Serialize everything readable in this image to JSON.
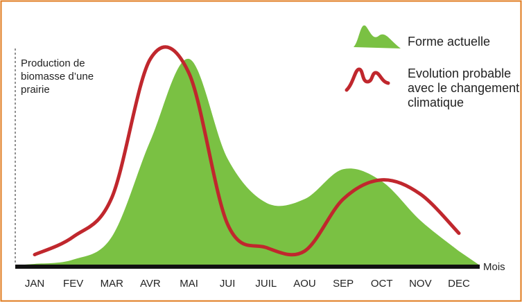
{
  "chart_data": {
    "type": "area-line",
    "y_label": "Production de biomasse d’une prairie",
    "x_label": "Mois",
    "categories": [
      "JAN",
      "FEV",
      "MAR",
      "AVR",
      "MAI",
      "JUI",
      "JUIL",
      "AOU",
      "SEP",
      "OCT",
      "NOV",
      "DEC"
    ],
    "series": [
      {
        "name": "Forme actuelle",
        "color": "#7ac143",
        "kind": "area",
        "values": [
          2,
          8,
          40,
          175,
          290,
          150,
          88,
          93,
          135,
          118,
          63,
          20
        ]
      },
      {
        "name": "Evolution probable avec le changement climatique",
        "color": "#c0272d",
        "kind": "line",
        "values": [
          15,
          40,
          95,
          290,
          270,
          58,
          25,
          20,
          93,
          120,
          100,
          45
        ]
      }
    ]
  }
}
